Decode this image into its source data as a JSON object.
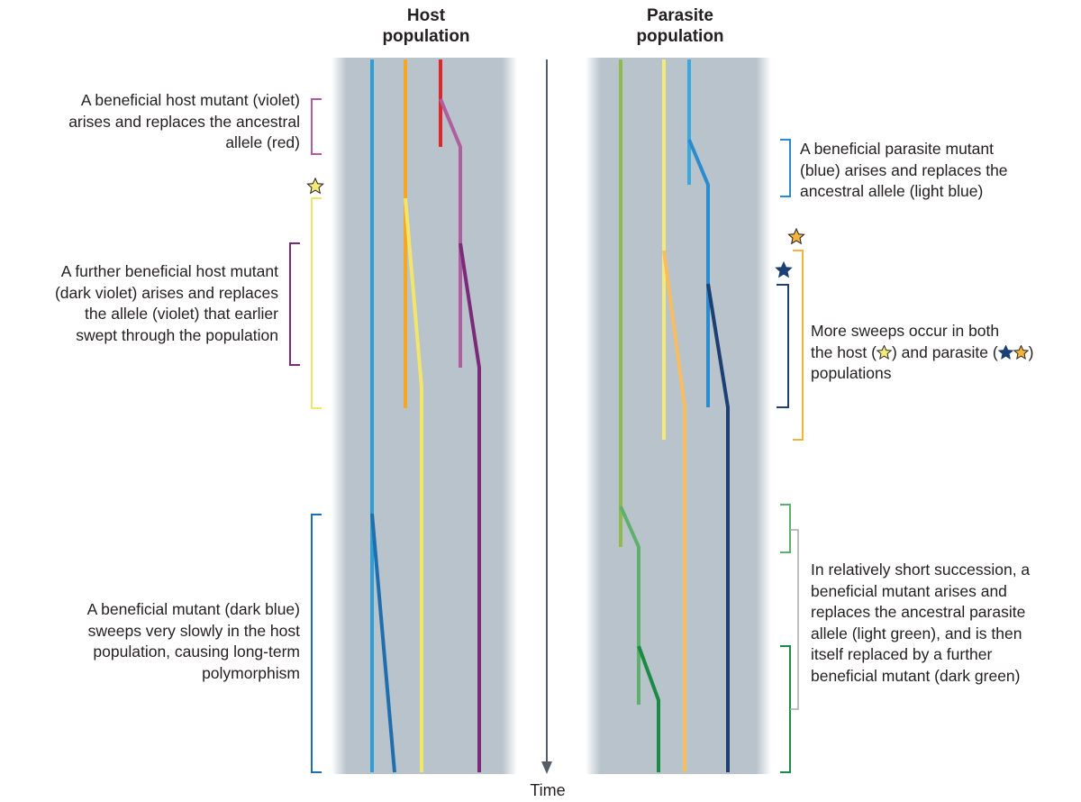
{
  "headers": {
    "host": [
      "Host",
      "population"
    ],
    "parasite": [
      "Parasite",
      "population"
    ]
  },
  "time_label": "Time",
  "annotations": {
    "host_violet": [
      "A beneficial host mutant (violet)",
      "arises and replaces the ancestral",
      "allele (red)"
    ],
    "host_dark_violet": [
      "A further beneficial host mutant",
      "(dark violet) arises and replaces",
      "the allele (violet) that earlier",
      "swept through the population"
    ],
    "host_dark_blue": [
      "A beneficial mutant (dark blue)",
      "sweeps very slowly in the host",
      "population, causing long-term",
      "polymorphism"
    ],
    "parasite_blue": [
      "A beneficial parasite mutant",
      "(blue) arises and replaces the",
      "ancestral allele (light blue)"
    ],
    "parasite_more_sweeps": {
      "line1": "More sweeps occur in both",
      "line2_a": "the host (",
      "line2_b": ") and parasite (",
      "line2_c": ")",
      "line3": "populations"
    },
    "parasite_green": [
      "In relatively short succession, a",
      "beneficial mutant arises and",
      "replaces the ancestral parasite",
      "allele (light green), and is then",
      "itself replaced by a further",
      "beneficial mutant (dark green)"
    ]
  },
  "colors": {
    "panel": "#b9c3cb",
    "host_blue": "#2b9fd6",
    "host_dark_blue": "#1f6fae",
    "orange": "#f5a623",
    "yellow": "#f3e56a",
    "red": "#e0262b",
    "violet": "#b05ea0",
    "dark_violet": "#7a2a78",
    "light_green": "#8fba4e",
    "green": "#5fb06d",
    "dark_green": "#1a8a45",
    "pale_yellow": "#f3ea7c",
    "light_orange": "#f7bd5f",
    "light_blue": "#3aa9de",
    "blue": "#2a8bcf",
    "navy": "#1d3f73",
    "gold": "#f3b43a",
    "bracket_gray": "#aaaaaa"
  },
  "icons": [
    "arrow-down-icon",
    "star-icon"
  ]
}
